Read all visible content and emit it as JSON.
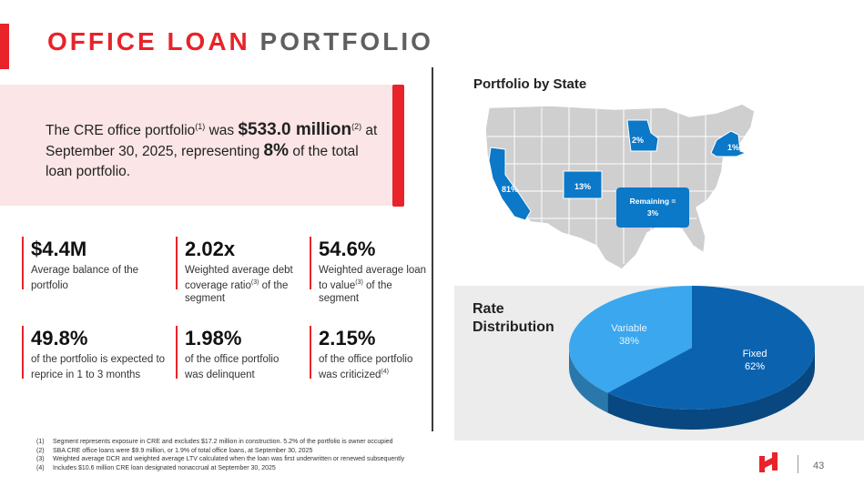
{
  "title": {
    "part1": "OFFICE LOAN",
    "part2": "PORTFOLIO"
  },
  "callout": {
    "prefix": "The CRE office portfolio",
    "fn1": "(1)",
    "mid": " was ",
    "amount": "$533.0 million",
    "fn2": "(2)",
    "mid2": " at September 30, 2025, representing ",
    "pct": "8%",
    "suffix": " of the total loan portfolio."
  },
  "stats": [
    {
      "value": "$4.4M",
      "desc_a": "Average balance of the portfolio",
      "sup": "",
      "desc_b": ""
    },
    {
      "value": "2.02x",
      "desc_a": "Weighted average debt coverage ratio",
      "sup": "(3)",
      "desc_b": " of the segment"
    },
    {
      "value": "54.6%",
      "desc_a": "Weighted average loan to value",
      "sup": "(3)",
      "desc_b": " of the segment"
    },
    {
      "value": "49.8%",
      "desc_a": "of the portfolio is expected to reprice in 1 to 3 months",
      "sup": "",
      "desc_b": ""
    },
    {
      "value": "1.98%",
      "desc_a": "of the office portfolio was delinquent",
      "sup": "",
      "desc_b": ""
    },
    {
      "value": "2.15%",
      "desc_a": "of the office portfolio was criticized",
      "sup": "(4)",
      "desc_b": ""
    }
  ],
  "map": {
    "title": "Portfolio by State",
    "labels": {
      "ca": "81%",
      "co": "13%",
      "mn": "2%",
      "ny": "1%",
      "remaining": "Remaining =\n3%"
    },
    "colors": {
      "highlight": "#0b78c8",
      "base": "#cfcfcf",
      "border": "#ffffff"
    }
  },
  "rate": {
    "title": "Rate Distribution",
    "slices": [
      {
        "name": "Variable",
        "value": 38,
        "label": "38%",
        "color": "#3aa7ee"
      },
      {
        "name": "Fixed",
        "value": 62,
        "label": "62%",
        "color": "#0b63b0"
      }
    ]
  },
  "footnotes": [
    {
      "num": "(1)",
      "text": "Segment represents exposure in CRE and excludes $17.2 million in construction. 5.2% of the portfolio is owner occupied"
    },
    {
      "num": "(2)",
      "text": "SBA CRE office loans were $9.9 million, or 1.9% of total office loans, at September 30, 2025"
    },
    {
      "num": "(3)",
      "text": "Weighted average DCR and weighted average LTV calculated when the loan was first underwritten or renewed subsequently"
    },
    {
      "num": "(4)",
      "text": "Includes $10.6 million CRE loan designated nonaccrual at September 30, 2025"
    }
  ],
  "page_number": "43",
  "brand_color": "#e8232a"
}
